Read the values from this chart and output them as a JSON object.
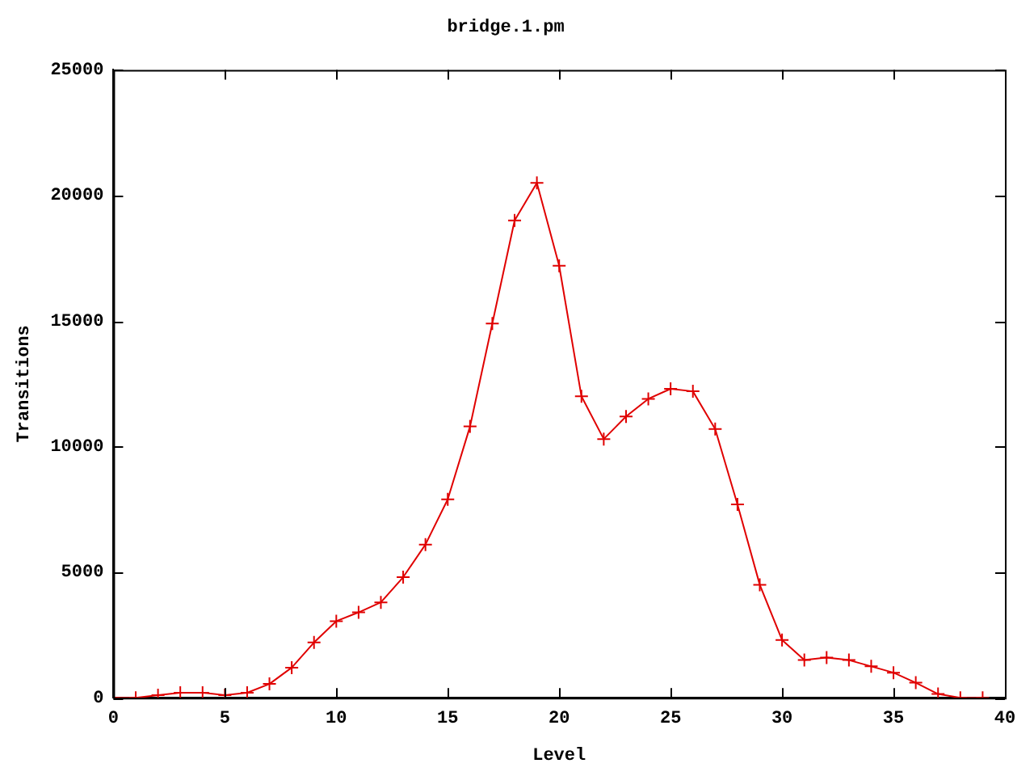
{
  "chart_data": {
    "type": "line",
    "title": "bridge.1.pm",
    "xlabel": "Level",
    "ylabel": "Transitions",
    "x": [
      0,
      1,
      2,
      3,
      4,
      5,
      6,
      7,
      8,
      9,
      10,
      11,
      12,
      13,
      14,
      15,
      16,
      17,
      18,
      19,
      20,
      21,
      22,
      23,
      24,
      25,
      26,
      27,
      28,
      29,
      30,
      31,
      32,
      33,
      34,
      35,
      36,
      37,
      38,
      39
    ],
    "series": [
      {
        "color": "#e00000",
        "values": [
          0,
          0,
          100,
          200,
          200,
          100,
          200,
          550,
          1200,
          2200,
          3050,
          3400,
          3800,
          4800,
          6100,
          7900,
          10800,
          14900,
          19000,
          20500,
          17200,
          12000,
          10300,
          11200,
          11900,
          12300,
          12200,
          10700,
          7700,
          4500,
          2300,
          1500,
          1600,
          1500,
          1250,
          1000,
          600,
          150,
          0,
          0
        ]
      }
    ],
    "xlim": [
      0,
      40
    ],
    "xticks": [
      0,
      5,
      10,
      15,
      20,
      25,
      30,
      35,
      40
    ],
    "ylim": [
      0,
      25000
    ],
    "yticks": [
      0,
      5000,
      10000,
      15000,
      20000,
      25000
    ],
    "grid": false,
    "legend": false,
    "marker": "cross",
    "line_style": "solid"
  }
}
